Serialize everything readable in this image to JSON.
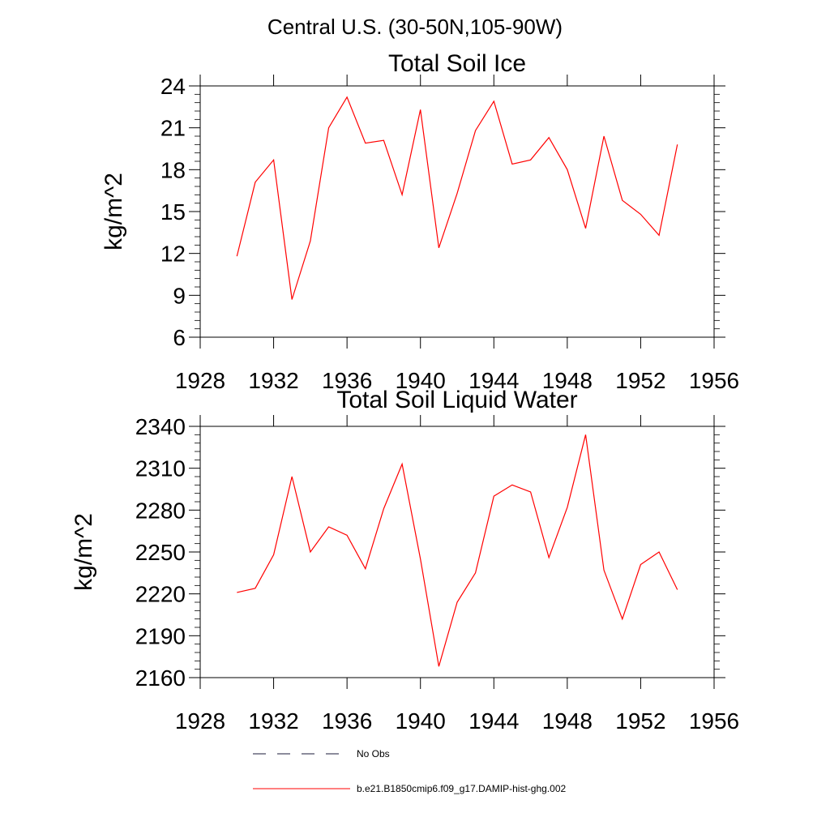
{
  "figure": {
    "title": "Central U.S. (30-50N,105-90W)"
  },
  "chart_data": [
    {
      "type": "line",
      "title": "Total Soil Ice",
      "xlabel": "",
      "ylabel": "kg/m^2",
      "xlim": [
        1928,
        1956
      ],
      "ylim": [
        6,
        24
      ],
      "xticks": [
        1928,
        1932,
        1936,
        1940,
        1944,
        1948,
        1952,
        1956
      ],
      "yticks": [
        6,
        9,
        12,
        15,
        18,
        21,
        24
      ],
      "x": [
        1930,
        1931,
        1932,
        1933,
        1934,
        1935,
        1936,
        1937,
        1938,
        1939,
        1940,
        1941,
        1942,
        1943,
        1944,
        1945,
        1946,
        1947,
        1948,
        1949,
        1950,
        1951,
        1952,
        1953,
        1954
      ],
      "series": [
        {
          "name": "b.e21.B1850cmip6.f09_g17.DAMIP-hist-ghg.002",
          "color": "#ff0000",
          "values": [
            11.8,
            17.1,
            18.7,
            8.7,
            12.9,
            21.0,
            23.2,
            19.9,
            20.1,
            16.2,
            22.3,
            12.4,
            16.3,
            20.8,
            22.9,
            18.4,
            18.7,
            20.3,
            18.0,
            13.8,
            20.4,
            15.8,
            14.8,
            13.3,
            19.8
          ]
        }
      ]
    },
    {
      "type": "line",
      "title": "Total Soil Liquid Water",
      "xlabel": "",
      "ylabel": "kg/m^2",
      "xlim": [
        1928,
        1956
      ],
      "ylim": [
        2160,
        2340
      ],
      "xticks": [
        1928,
        1932,
        1936,
        1940,
        1944,
        1948,
        1952,
        1956
      ],
      "yticks": [
        2160,
        2190,
        2220,
        2250,
        2280,
        2310,
        2340
      ],
      "x": [
        1930,
        1931,
        1932,
        1933,
        1934,
        1935,
        1936,
        1937,
        1938,
        1939,
        1940,
        1941,
        1942,
        1943,
        1944,
        1945,
        1946,
        1947,
        1948,
        1949,
        1950,
        1951,
        1952,
        1953,
        1954
      ],
      "series": [
        {
          "name": "b.e21.B1850cmip6.f09_g17.DAMIP-hist-ghg.002",
          "color": "#ff0000",
          "values": [
            2221,
            2224,
            2248,
            2304,
            2250,
            2268,
            2262,
            2238,
            2281,
            2313,
            2245,
            2168,
            2214,
            2235,
            2290,
            2298,
            2293,
            2246,
            2282,
            2334,
            2237,
            2202,
            2241,
            2250,
            2223
          ]
        }
      ]
    }
  ],
  "legend": {
    "placement": "bottom-center",
    "entries": [
      {
        "label": "No Obs",
        "style": "dashed",
        "color": "#1a1a3a"
      },
      {
        "label": "b.e21.B1850cmip6.f09_g17.DAMIP-hist-ghg.002",
        "style": "solid",
        "color": "#ff0000"
      }
    ]
  }
}
